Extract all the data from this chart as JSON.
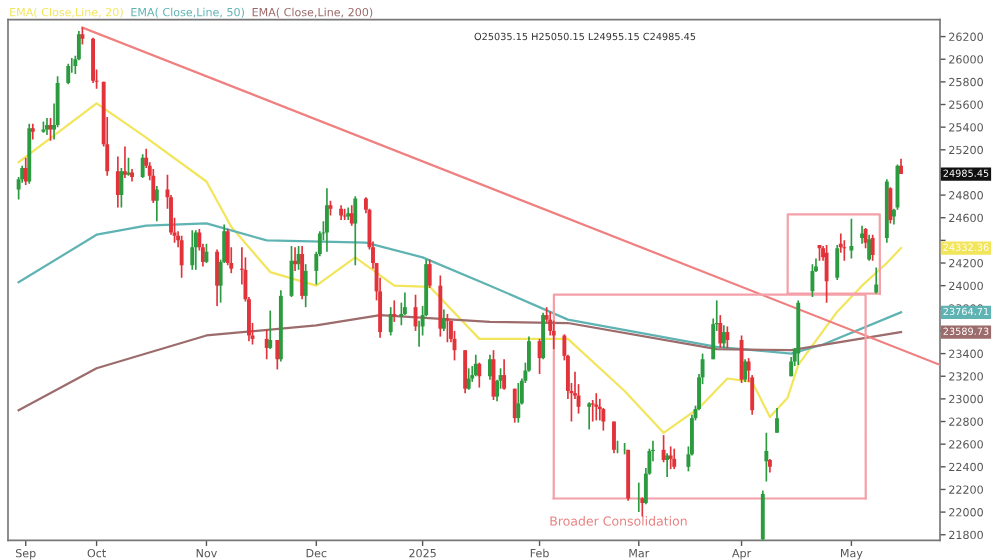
{
  "chart_data": {
    "type": "candlestick",
    "x": [
      "2024-09-09",
      "2024-09-10",
      "2024-09-11",
      "2024-09-12",
      "2024-09-13",
      "2024-09-16",
      "2024-09-17",
      "2024-09-18",
      "2024-09-19",
      "2024-09-20",
      "2024-09-23",
      "2024-09-24",
      "2024-09-25",
      "2024-09-26",
      "2024-09-27",
      "2024-09-30",
      "2024-10-01",
      "2024-10-03",
      "2024-10-04",
      "2024-10-07",
      "2024-10-08",
      "2024-10-09",
      "2024-10-10",
      "2024-10-11",
      "2024-10-14",
      "2024-10-15",
      "2024-10-16",
      "2024-10-17",
      "2024-10-18",
      "2024-10-21",
      "2024-10-22",
      "2024-10-23",
      "2024-10-24",
      "2024-10-25",
      "2024-10-28",
      "2024-10-29",
      "2024-10-30",
      "2024-10-31",
      "2024-11-01",
      "2024-11-04",
      "2024-11-05",
      "2024-11-06",
      "2024-11-07",
      "2024-11-08",
      "2024-11-11",
      "2024-11-12",
      "2024-11-13",
      "2024-11-14",
      "2024-11-18",
      "2024-11-19",
      "2024-11-21",
      "2024-11-22",
      "2024-11-25",
      "2024-11-26",
      "2024-11-27",
      "2024-11-28",
      "2024-11-29",
      "2024-12-02",
      "2024-12-03",
      "2024-12-04",
      "2024-12-05",
      "2024-12-06",
      "2024-12-09",
      "2024-12-10",
      "2024-12-11",
      "2024-12-12",
      "2024-12-13",
      "2024-12-16",
      "2024-12-17",
      "2024-12-18",
      "2024-12-19",
      "2024-12-20",
      "2024-12-23",
      "2024-12-24",
      "2024-12-26",
      "2024-12-27",
      "2024-12-30",
      "2024-12-31",
      "2025-01-01",
      "2025-01-02",
      "2025-01-03",
      "2025-01-06",
      "2025-01-07",
      "2025-01-08",
      "2025-01-09",
      "2025-01-10",
      "2025-01-13",
      "2025-01-14",
      "2025-01-15",
      "2025-01-16",
      "2025-01-17",
      "2025-01-20",
      "2025-01-21",
      "2025-01-22",
      "2025-01-23",
      "2025-01-24",
      "2025-01-27",
      "2025-01-28",
      "2025-01-29",
      "2025-01-30",
      "2025-01-31",
      "2025-02-03",
      "2025-02-04",
      "2025-02-05",
      "2025-02-06",
      "2025-02-07",
      "2025-02-10",
      "2025-02-11",
      "2025-02-12",
      "2025-02-13",
      "2025-02-14",
      "2025-02-17",
      "2025-02-18",
      "2025-02-19",
      "2025-02-20",
      "2025-02-21",
      "2025-02-24",
      "2025-02-25",
      "2025-02-27",
      "2025-02-28",
      "2025-03-03",
      "2025-03-04",
      "2025-03-05",
      "2025-03-06",
      "2025-03-07",
      "2025-03-10",
      "2025-03-11",
      "2025-03-12",
      "2025-03-13",
      "2025-03-17",
      "2025-03-18",
      "2025-03-19",
      "2025-03-20",
      "2025-03-21",
      "2025-03-24",
      "2025-03-25",
      "2025-03-26",
      "2025-03-27",
      "2025-03-28",
      "2025-04-01",
      "2025-04-02",
      "2025-04-03",
      "2025-04-04",
      "2025-04-07",
      "2025-04-08",
      "2025-04-09",
      "2025-04-11",
      "2025-04-15",
      "2025-04-16",
      "2025-04-17",
      "2025-04-21",
      "2025-04-22",
      "2025-04-23",
      "2025-04-24",
      "2025-04-25",
      "2025-04-28",
      "2025-04-29",
      "2025-04-30",
      "2025-05-02",
      "2025-05-05",
      "2025-05-06",
      "2025-05-07",
      "2025-05-08",
      "2025-05-09",
      "2025-05-12",
      "2025-05-13",
      "2025-05-14",
      "2025-05-15",
      "2025-05-16"
    ],
    "ohlc": [
      [
        24850,
        24960,
        24760,
        24940
      ],
      [
        24940,
        25060,
        24910,
        25040
      ],
      [
        25040,
        25130,
        24890,
        24920
      ],
      [
        24920,
        25430,
        24900,
        25390
      ],
      [
        25390,
        25430,
        25290,
        25360
      ],
      [
        25360,
        25450,
        25350,
        25380
      ],
      [
        25380,
        25480,
        25330,
        25420
      ],
      [
        25420,
        25480,
        25280,
        25380
      ],
      [
        25380,
        25610,
        25290,
        25420
      ],
      [
        25420,
        25850,
        25400,
        25790
      ],
      [
        25790,
        25960,
        25780,
        25940
      ],
      [
        25940,
        26010,
        25880,
        25940
      ],
      [
        25940,
        26030,
        25870,
        26000
      ],
      [
        26000,
        26250,
        25990,
        26220
      ],
      [
        26220,
        26280,
        26130,
        26180
      ],
      [
        26180,
        26190,
        25790,
        25810
      ],
      [
        25810,
        25910,
        25740,
        25800
      ],
      [
        25800,
        25800,
        25230,
        25250
      ],
      [
        25250,
        25490,
        24970,
        25010
      ],
      [
        25010,
        25140,
        24690,
        24800
      ],
      [
        24800,
        25040,
        24690,
        25010
      ],
      [
        25010,
        25230,
        24950,
        24980
      ],
      [
        24980,
        25130,
        24970,
        25000
      ],
      [
        25000,
        25030,
        24920,
        24960
      ],
      [
        24960,
        25160,
        24950,
        25130
      ],
      [
        25130,
        25210,
        25040,
        25060
      ],
      [
        25060,
        25090,
        24930,
        24970
      ],
      [
        24970,
        25030,
        24730,
        24750
      ],
      [
        24750,
        24880,
        24570,
        24850
      ],
      [
        24850,
        24980,
        24680,
        24780
      ],
      [
        24780,
        24800,
        24450,
        24470
      ],
      [
        24470,
        24600,
        24380,
        24440
      ],
      [
        24440,
        24480,
        24340,
        24400
      ],
      [
        24400,
        24440,
        24070,
        24180
      ],
      [
        24180,
        24490,
        24140,
        24340
      ],
      [
        24340,
        24490,
        24140,
        24470
      ],
      [
        24470,
        24500,
        24310,
        24340
      ],
      [
        24340,
        24370,
        24170,
        24210
      ],
      [
        24210,
        24370,
        24200,
        24300
      ],
      [
        24300,
        24320,
        23820,
        24000
      ],
      [
        24000,
        24230,
        23850,
        24210
      ],
      [
        24210,
        24540,
        24200,
        24480
      ],
      [
        24480,
        24500,
        24180,
        24200
      ],
      [
        24200,
        24340,
        24110,
        24150
      ],
      [
        24150,
        24340,
        24010,
        24140
      ],
      [
        24140,
        24250,
        23860,
        23880
      ],
      [
        23880,
        23900,
        23510,
        23560
      ],
      [
        23560,
        23670,
        23480,
        23530
      ],
      [
        23530,
        23610,
        23350,
        23450
      ],
      [
        23450,
        23780,
        23440,
        23520
      ],
      [
        23520,
        23520,
        23260,
        23350
      ],
      [
        23350,
        23960,
        23330,
        23910
      ],
      [
        23910,
        24350,
        23900,
        24220
      ],
      [
        24220,
        24340,
        24130,
        24190
      ],
      [
        24190,
        24350,
        24140,
        24280
      ],
      [
        24280,
        24350,
        23880,
        23910
      ],
      [
        23910,
        24190,
        23810,
        24130
      ],
      [
        24130,
        24300,
        24010,
        24280
      ],
      [
        24280,
        24480,
        24260,
        24460
      ],
      [
        24460,
        24570,
        24400,
        24470
      ],
      [
        24470,
        24860,
        24300,
        24710
      ],
      [
        24710,
        24750,
        24620,
        24680
      ],
      [
        24680,
        24710,
        24580,
        24620
      ],
      [
        24620,
        24680,
        24580,
        24610
      ],
      [
        24610,
        24690,
        24580,
        24640
      ],
      [
        24640,
        24710,
        24530,
        24550
      ],
      [
        24550,
        24790,
        24180,
        24770
      ],
      [
        24770,
        24780,
        24640,
        24670
      ],
      [
        24670,
        24680,
        24320,
        24340
      ],
      [
        24340,
        24390,
        24150,
        24200
      ],
      [
        24200,
        24200,
        23870,
        23950
      ],
      [
        23950,
        24070,
        23540,
        23590
      ],
      [
        23590,
        23810,
        23560,
        23750
      ],
      [
        23750,
        23870,
        23680,
        23730
      ],
      [
        23730,
        23850,
        23650,
        23750
      ],
      [
        23750,
        23940,
        23740,
        23810
      ],
      [
        23810,
        23920,
        23600,
        23640
      ],
      [
        23640,
        23690,
        23460,
        23640
      ],
      [
        23640,
        23820,
        23560,
        23740
      ],
      [
        23740,
        24230,
        23730,
        24190
      ],
      [
        24190,
        24230,
        23980,
        24000
      ],
      [
        24000,
        24090,
        23550,
        23620
      ],
      [
        23620,
        23790,
        23600,
        23710
      ],
      [
        23710,
        23750,
        23500,
        23690
      ],
      [
        23690,
        23690,
        23500,
        23530
      ],
      [
        23530,
        23600,
        23340,
        23430
      ],
      [
        23430,
        23430,
        23050,
        23090
      ],
      [
        23090,
        23270,
        23080,
        23180
      ],
      [
        23180,
        23290,
        23150,
        23210
      ],
      [
        23210,
        23390,
        23200,
        23310
      ],
      [
        23310,
        23320,
        23100,
        23200
      ],
      [
        23200,
        23390,
        23170,
        23350
      ],
      [
        23350,
        23430,
        22990,
        23020
      ],
      [
        23020,
        23170,
        22980,
        23160
      ],
      [
        23160,
        23270,
        23090,
        23210
      ],
      [
        23210,
        23350,
        23080,
        23090
      ],
      [
        23090,
        23090,
        22790,
        22830
      ],
      [
        22830,
        23140,
        22790,
        22960
      ],
      [
        22960,
        23180,
        22950,
        23160
      ],
      [
        23160,
        23320,
        23140,
        23250
      ],
      [
        23250,
        23550,
        23240,
        23510
      ],
      [
        23510,
        23530,
        23220,
        23360
      ],
      [
        23360,
        23760,
        23350,
        23740
      ],
      [
        23740,
        23810,
        23680,
        23700
      ],
      [
        23700,
        23770,
        23560,
        23600
      ],
      [
        23600,
        23690,
        23440,
        23560
      ],
      [
        23560,
        23570,
        23340,
        23380
      ],
      [
        23380,
        23390,
        23000,
        23070
      ],
      [
        23070,
        23140,
        22800,
        23050
      ],
      [
        23050,
        23240,
        23000,
        23030
      ],
      [
        23030,
        23130,
        22870,
        22930
      ],
      [
        22930,
        22970,
        22730,
        22960
      ],
      [
        22960,
        22990,
        22800,
        22950
      ],
      [
        22950,
        23050,
        22810,
        22930
      ],
      [
        22930,
        23000,
        22810,
        22910
      ],
      [
        22910,
        22920,
        22720,
        22800
      ],
      [
        22800,
        22800,
        22520,
        22550
      ],
      [
        22550,
        22630,
        22520,
        22550
      ],
      [
        22550,
        22610,
        22510,
        22550
      ],
      [
        22550,
        22550,
        22100,
        22120
      ],
      [
        22120,
        22260,
        22000,
        22120
      ],
      [
        22120,
        22130,
        21960,
        22080
      ],
      [
        22080,
        22390,
        22070,
        22340
      ],
      [
        22340,
        22560,
        22330,
        22540
      ],
      [
        22540,
        22630,
        22450,
        22550
      ],
      [
        22550,
        22680,
        22440,
        22460
      ],
      [
        22460,
        22520,
        22310,
        22500
      ],
      [
        22500,
        22580,
        22380,
        22470
      ],
      [
        22470,
        22560,
        22380,
        22400
      ],
      [
        22400,
        22580,
        22360,
        22510
      ],
      [
        22510,
        22860,
        22500,
        22830
      ],
      [
        22830,
        22940,
        22810,
        22910
      ],
      [
        22910,
        23220,
        22900,
        23190
      ],
      [
        23190,
        23400,
        23130,
        23350
      ],
      [
        23350,
        23710,
        23350,
        23660
      ],
      [
        23660,
        23870,
        23600,
        23670
      ],
      [
        23670,
        23740,
        23450,
        23490
      ],
      [
        23490,
        23650,
        23450,
        23590
      ],
      [
        23590,
        23640,
        23450,
        23520
      ],
      [
        23520,
        23560,
        23140,
        23170
      ],
      [
        23170,
        23350,
        23150,
        23330
      ],
      [
        23330,
        23360,
        23150,
        23250
      ],
      [
        23190,
        23210,
        22860,
        22900
      ],
      [
        21760,
        22190,
        21740,
        22160
      ],
      [
        22450,
        22700,
        22270,
        22540
      ],
      [
        22460,
        22470,
        22350,
        22400
      ],
      [
        22700,
        22920,
        22700,
        22830
      ],
      [
        23200,
        23370,
        23200,
        23330
      ],
      [
        23330,
        23450,
        23290,
        23440
      ],
      [
        23400,
        23870,
        23300,
        23850
      ],
      [
        23950,
        24190,
        23900,
        24130
      ],
      [
        24130,
        24240,
        24120,
        24170
      ],
      [
        24360,
        24360,
        24220,
        24330
      ],
      [
        24330,
        24350,
        24220,
        24250
      ],
      [
        24290,
        24360,
        23850,
        24040
      ],
      [
        24070,
        24360,
        24050,
        24330
      ],
      [
        24370,
        24460,
        24290,
        24340
      ],
      [
        24340,
        24400,
        24220,
        24330
      ],
      [
        24310,
        24590,
        24240,
        24350
      ],
      [
        24420,
        24530,
        24370,
        24460
      ],
      [
        24500,
        24510,
        24330,
        24380
      ],
      [
        24230,
        24450,
        24220,
        24410
      ],
      [
        24420,
        24450,
        24220,
        24270
      ],
      [
        23940,
        24160,
        23930,
        24010
      ],
      [
        24420,
        24940,
        24380,
        24920
      ],
      [
        24860,
        24870,
        24550,
        24580
      ],
      [
        24610,
        24680,
        24540,
        24670
      ],
      [
        24690,
        25070,
        24670,
        25060
      ],
      [
        25060,
        25120,
        24985.45,
        24985.45
      ]
    ],
    "series": [
      {
        "name": "EMA( Close,Line, 20)",
        "type": "line",
        "color": "#f2e55c",
        "x": [
          "2024-09-09",
          "2024-10-01",
          "2024-10-14",
          "2024-11-01",
          "2024-11-08",
          "2024-11-19",
          "2024-12-02",
          "2024-12-13",
          "2024-12-24",
          "2025-01-03",
          "2025-01-17",
          "2025-02-11",
          "2025-02-27",
          "2025-03-10",
          "2025-03-20",
          "2025-03-28",
          "2025-04-04",
          "2025-04-09",
          "2025-04-14",
          "2025-04-17",
          "2025-04-28",
          "2025-05-05",
          "2025-05-12",
          "2025-05-16"
        ],
        "values": [
          25090,
          25610,
          25330,
          24920,
          24520,
          24120,
          24000,
          24250,
          24000,
          23990,
          23530,
          23530,
          23070,
          22700,
          22920,
          23180,
          23150,
          22840,
          23010,
          23300,
          23770,
          24000,
          24200,
          24332.36
        ]
      },
      {
        "name": "EMA( Close,Line, 50)",
        "type": "line",
        "color": "#5fb3b3",
        "x": [
          "2024-09-09",
          "2024-10-01",
          "2024-10-15",
          "2024-11-01",
          "2024-11-18",
          "2024-12-16",
          "2025-01-01",
          "2025-01-20",
          "2025-02-11",
          "2025-03-25",
          "2025-04-15",
          "2025-04-24",
          "2025-05-16"
        ],
        "values": [
          24030,
          24450,
          24530,
          24550,
          24400,
          24380,
          24250,
          24000,
          23700,
          23460,
          23400,
          23480,
          23764.71
        ]
      },
      {
        "name": "EMA( Close,Line, 200)",
        "type": "line",
        "color": "#9c6b6b",
        "x": [
          "2024-09-09",
          "2024-10-01",
          "2024-11-01",
          "2024-12-02",
          "2024-12-20",
          "2025-01-20",
          "2025-02-11",
          "2025-03-25",
          "2025-04-15",
          "2025-05-16"
        ],
        "values": [
          22900,
          23270,
          23560,
          23650,
          23740,
          23680,
          23670,
          23440,
          23430,
          23589.73
        ]
      },
      {
        "type": "line",
        "color": "#f08080",
        "x": [
          "2024-09-27",
          "2025-05-27"
        ],
        "values": [
          26280,
          23300
        ]
      },
      {
        "type": "line",
        "color": "#f4a0a8",
        "x": [
          "2025-02-07T00:00",
          "2025-02-07T01:00",
          "2025-05-06T00:00",
          "2025-05-06T01:00"
        ],
        "values": [
          22120,
          23920,
          23920,
          22120
        ]
      },
      {
        "type": "line",
        "color": "#f4a0a8",
        "x": [
          "2025-04-14T00:00",
          "2025-04-14T01:00",
          "2025-05-10T00:00",
          "2025-05-10T01:00"
        ],
        "values": [
          23930,
          24630,
          24630,
          23930
        ]
      },
      {
        "type": "line",
        "color": "#f4a0a8",
        "x": [
          "2025-02-07",
          "2025-05-06"
        ],
        "values": [
          22120,
          22120
        ]
      },
      {
        "type": "line",
        "color": "#f4a0a8",
        "x": [
          "2025-04-14",
          "2025-05-10"
        ],
        "values": [
          23930,
          23930
        ]
      }
    ],
    "xlim": [
      "2024-09-06",
      "2025-05-27"
    ],
    "xticks": [
      {
        "value": "2024-09-11",
        "label": "Sep"
      },
      {
        "value": "2024-10-01",
        "label": "Oct"
      },
      {
        "value": "2024-11-01",
        "label": "Nov"
      },
      {
        "value": "2024-12-02",
        "label": "Dec"
      },
      {
        "value": "2025-01-01",
        "label": "2025"
      },
      {
        "value": "2025-02-03",
        "label": "Feb"
      },
      {
        "value": "2025-03-03",
        "label": "Mar"
      },
      {
        "value": "2025-04-01",
        "label": "Apr"
      },
      {
        "value": "2025-05-02",
        "label": "May"
      }
    ],
    "ylim": [
      21750,
      26350
    ],
    "yticks": [
      21800,
      22000,
      22200,
      22400,
      22600,
      22800,
      23000,
      23200,
      23400,
      {
        "value": 23600,
        "label": null
      },
      23800,
      24000,
      24200,
      {
        "value": 24400,
        "label": null
      },
      24600,
      24800,
      {
        "value": 25000,
        "label": null
      },
      25200,
      25400,
      25600,
      25800,
      26000,
      26200
    ],
    "legend": "top left",
    "grid": false,
    "annotations": [
      "Broader Consolidation",
      "24985.45",
      "24332.36",
      "23764.71",
      "23589.73",
      "O25035.15 H25050.15 L24955.15 C24985.45"
    ]
  }
}
